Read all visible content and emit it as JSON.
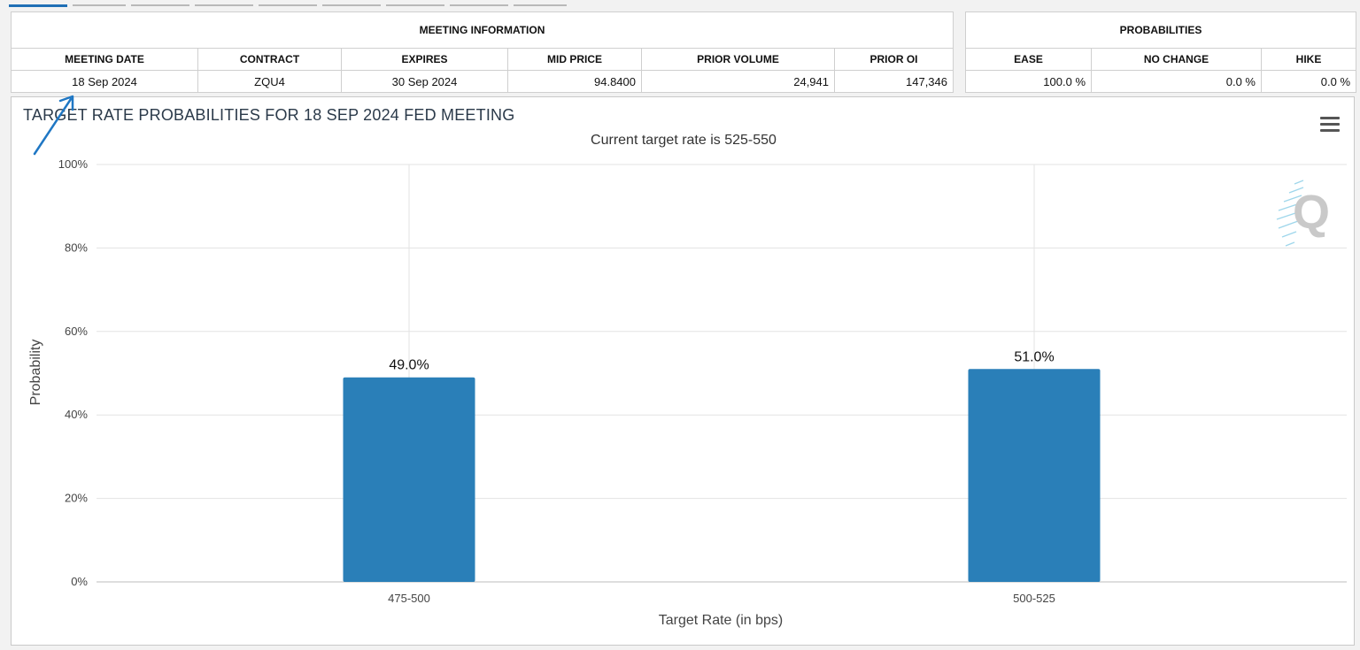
{
  "meeting_info": {
    "section_title": "MEETING INFORMATION",
    "headers": [
      "MEETING DATE",
      "CONTRACT",
      "EXPIRES",
      "MID PRICE",
      "PRIOR VOLUME",
      "PRIOR OI"
    ],
    "values": [
      "18 Sep 2024",
      "ZQU4",
      "30 Sep 2024",
      "94.8400",
      "24,941",
      "147,346"
    ]
  },
  "probabilities": {
    "section_title": "PROBABILITIES",
    "headers": [
      "EASE",
      "NO CHANGE",
      "HIKE"
    ],
    "values": [
      "100.0 %",
      "0.0 %",
      "0.0 %"
    ]
  },
  "chart_panel": {
    "menu_icon": "hamburger-menu-icon",
    "logo_icon": "q-logo-icon",
    "annotation_icon": "arrow-annotation-icon"
  },
  "chart_data": {
    "type": "bar",
    "title": "TARGET RATE PROBABILITIES FOR 18 SEP 2024 FED MEETING",
    "subtitle": "Current target rate is 525-550",
    "categories": [
      "475-500",
      "500-525"
    ],
    "values": [
      49.0,
      51.0
    ],
    "data_labels": [
      "49.0%",
      "51.0%"
    ],
    "xlabel": "Target Rate (in bps)",
    "ylabel": "Probability",
    "ylim": [
      0,
      100
    ],
    "yticks": [
      "0%",
      "20%",
      "40%",
      "60%",
      "80%",
      "100%"
    ],
    "grid": true,
    "bar_color": "#2a7fb8"
  },
  "colors": {
    "accent": "#1f6fb5",
    "bar": "#2a7fb8",
    "annotation": "#1f77c4"
  }
}
